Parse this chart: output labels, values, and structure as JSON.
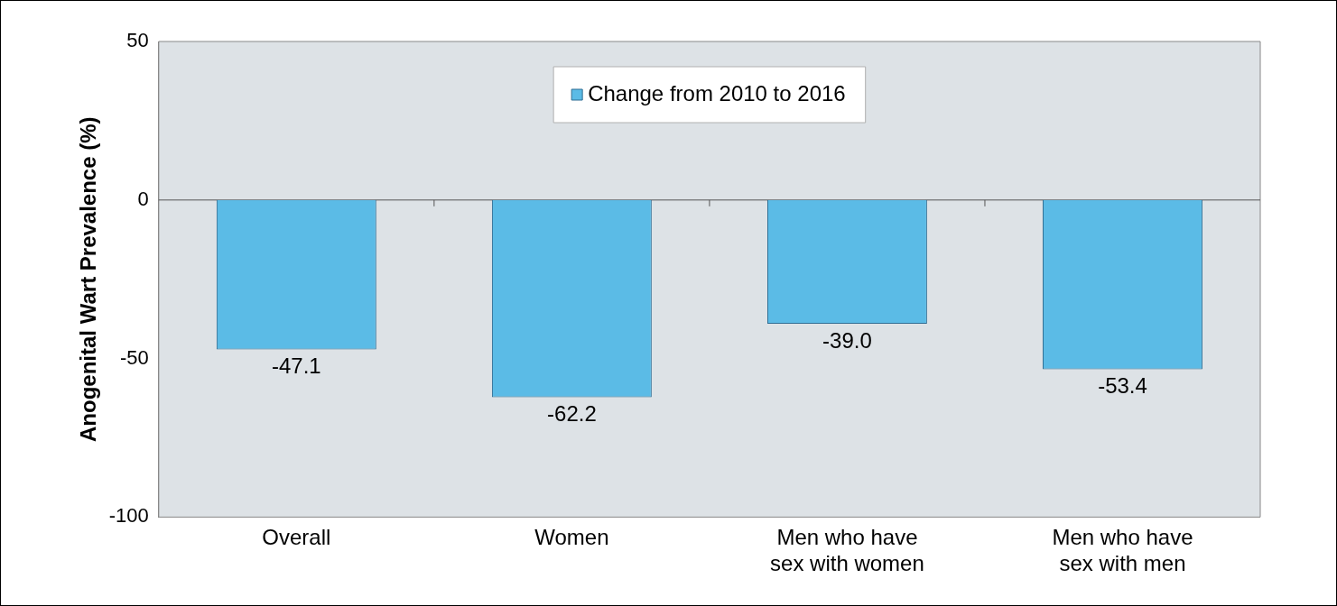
{
  "chart_data": {
    "type": "bar",
    "ylabel": "Anogenital Wart Prevalence (%)",
    "categories": [
      "Overall",
      "Women",
      "Men who have sex with women",
      "Men who have sex with men"
    ],
    "series": [
      {
        "name": "Change from 2010 to 2016",
        "color": "#5bbbe6",
        "values": [
          -47.1,
          -62.2,
          -39.0,
          -53.4
        ],
        "value_labels": [
          "-47.1",
          "-62.2",
          "-39.0",
          "-53.4"
        ]
      }
    ],
    "ref_lines": [
      {
        "axis": "y",
        "value": 0
      }
    ],
    "ylim": [
      -100,
      50
    ],
    "yticks": [
      -100,
      -50,
      0,
      50
    ],
    "grid": false,
    "legend": "top"
  }
}
